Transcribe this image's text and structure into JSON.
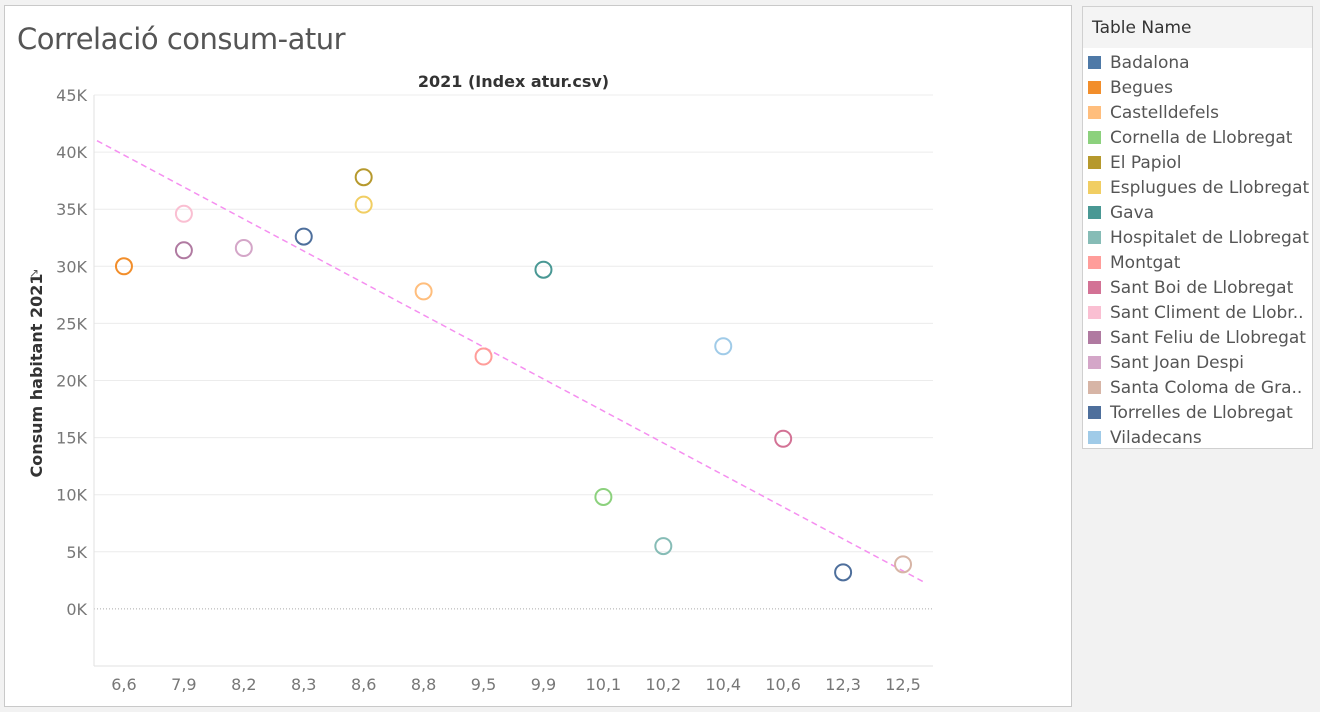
{
  "chart_data": {
    "type": "scatter",
    "title": "Correlació consum-atur",
    "subtitle": "2021 (Index atur.csv)",
    "ylabel": "Consum habitant 2021",
    "xlabel": "",
    "ylim": [
      -5000,
      45000
    ],
    "y_ticks": [
      "45K",
      "40K",
      "35K",
      "30K",
      "25K",
      "20K",
      "15K",
      "10K",
      "5K",
      "0K"
    ],
    "y_tick_values": [
      45000,
      40000,
      35000,
      30000,
      25000,
      20000,
      15000,
      10000,
      5000,
      0
    ],
    "categories": [
      "6,6",
      "7,9",
      "8,2",
      "8,3",
      "8,6",
      "8,8",
      "9,5",
      "9,9",
      "10,1",
      "10,2",
      "10,4",
      "10,6",
      "12,3",
      "12,5"
    ],
    "grid": true,
    "legend_position": "right",
    "legend_title": "Table Name",
    "series": [
      {
        "name": "Badalona",
        "color": "#4e79a7",
        "points": []
      },
      {
        "name": "Begues",
        "color": "#f28e2b",
        "points": [
          {
            "x": "6,6",
            "y": 30000
          }
        ]
      },
      {
        "name": "Castelldefels",
        "color": "#ffbe7d",
        "points": [
          {
            "x": "8,8",
            "y": 27800
          }
        ]
      },
      {
        "name": "Cornella de Llobregat",
        "color": "#8cd17d",
        "points": [
          {
            "x": "10,1",
            "y": 9800
          }
        ]
      },
      {
        "name": "El Papiol",
        "color": "#b6992d",
        "points": [
          {
            "x": "8,6",
            "y": 37800
          }
        ]
      },
      {
        "name": "Esplugues de Llobregat",
        "color": "#f1ce63",
        "points": [
          {
            "x": "8,6",
            "y": 35400
          }
        ]
      },
      {
        "name": "Gava",
        "color": "#499894",
        "points": [
          {
            "x": "9,9",
            "y": 29700
          }
        ]
      },
      {
        "name": "Hospitalet de Llobregat",
        "color": "#86bcb6",
        "points": [
          {
            "x": "10,2",
            "y": 5500
          }
        ]
      },
      {
        "name": "Montgat",
        "color": "#ff9d9a",
        "points": [
          {
            "x": "9,5",
            "y": 22100
          }
        ]
      },
      {
        "name": "Sant Boi de Llobregat",
        "color": "#d37295",
        "points": [
          {
            "x": "10,6",
            "y": 14900
          }
        ]
      },
      {
        "name": "Sant Climent de Llobr..",
        "color": "#fabfd2",
        "points": [
          {
            "x": "7,9",
            "y": 34600
          }
        ]
      },
      {
        "name": "Sant Feliu de Llobregat",
        "color": "#b07aa1",
        "points": [
          {
            "x": "7,9",
            "y": 31400
          }
        ]
      },
      {
        "name": "Sant Joan Despi",
        "color": "#d4a6c8",
        "points": [
          {
            "x": "8,2",
            "y": 31600
          }
        ]
      },
      {
        "name": "Santa Coloma de Gra..",
        "color": "#d7b5a6",
        "points": [
          {
            "x": "12,5",
            "y": 3900
          }
        ]
      },
      {
        "name": "Torrelles de Llobregat",
        "color": "#4e6f9c",
        "points": [
          {
            "x": "8,3",
            "y": 32600
          },
          {
            "x": "12,3",
            "y": 3200
          }
        ]
      },
      {
        "name": "Viladecans",
        "color": "#a0cbe8",
        "points": [
          {
            "x": "10,4",
            "y": 23000
          }
        ]
      }
    ],
    "trend_line": {
      "color": "#f58ff0",
      "style": "dashed",
      "y_start": 41000,
      "y_end": 2300
    }
  }
}
